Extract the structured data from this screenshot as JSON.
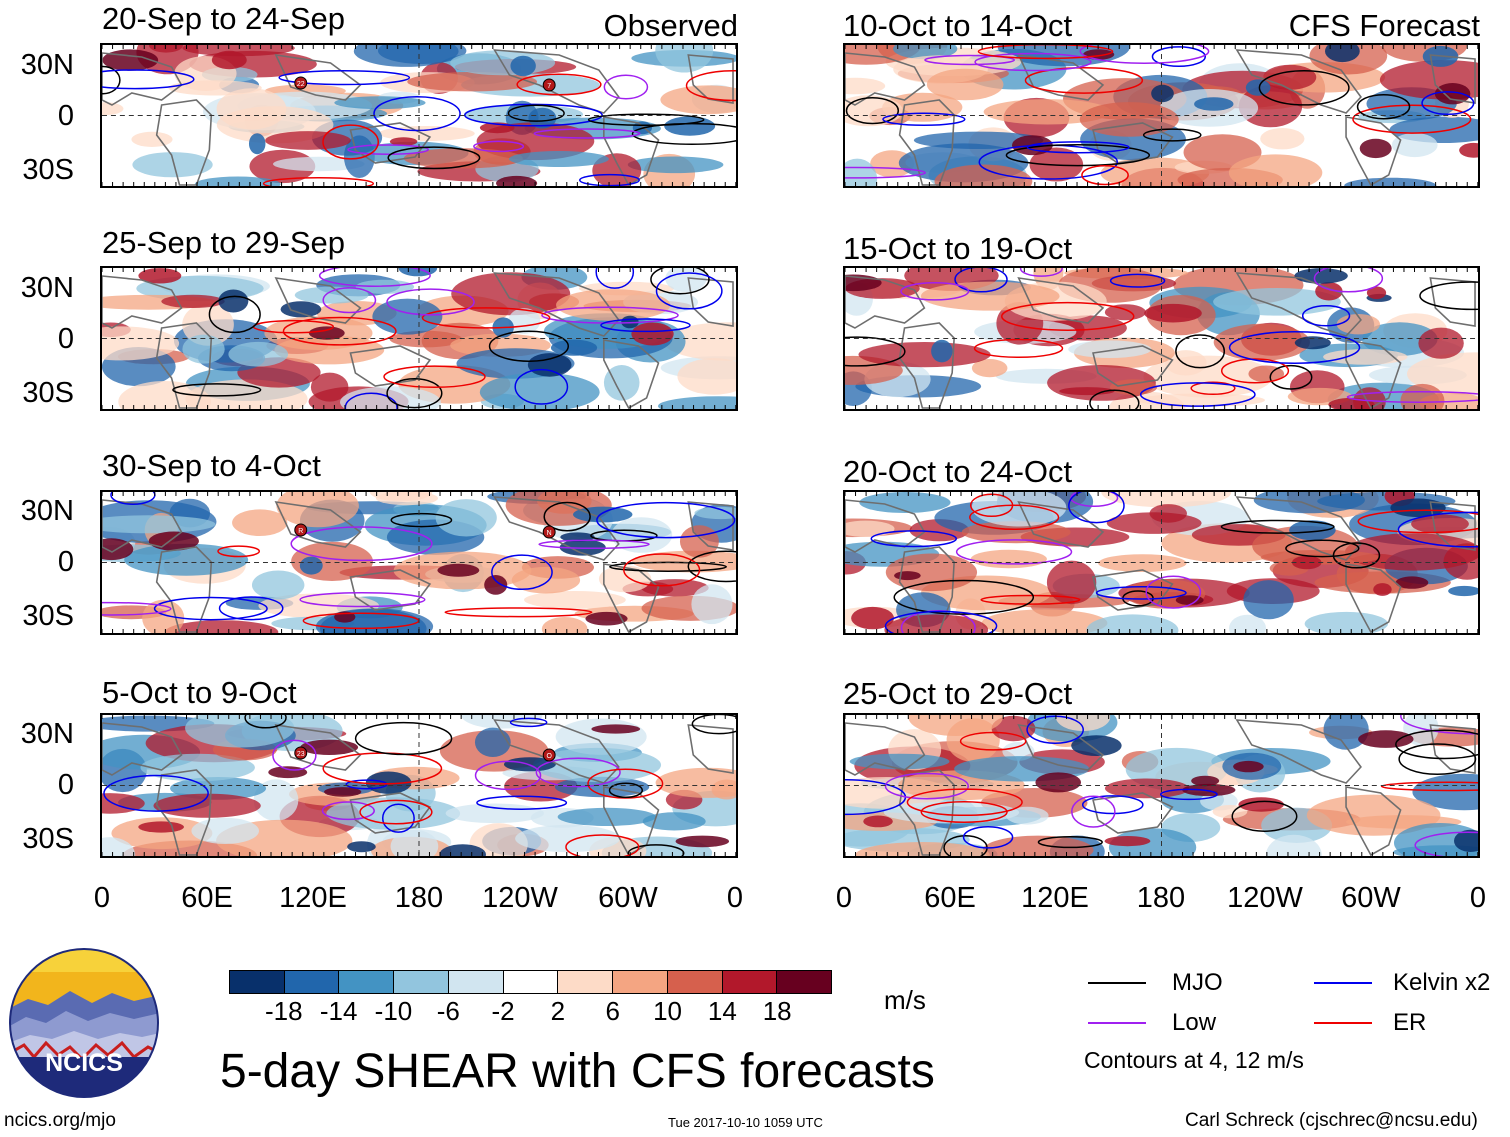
{
  "observed": {
    "label": "Observed",
    "panels": [
      {
        "title": "20-Sep to 24-Sep",
        "storms": [
          "22",
          "7"
        ]
      },
      {
        "title": "25-Sep to 29-Sep",
        "storms": []
      },
      {
        "title": "30-Sep to 4-Oct",
        "storms": [
          "R",
          "N"
        ]
      },
      {
        "title": "5-Oct to 9-Oct",
        "storms": [
          "23",
          "O"
        ]
      }
    ]
  },
  "forecast": {
    "label": "CFS Forecast",
    "panels": [
      {
        "title": "10-Oct to 14-Oct"
      },
      {
        "title": "15-Oct to 19-Oct"
      },
      {
        "title": "20-Oct to 24-Oct"
      },
      {
        "title": "25-Oct to 29-Oct"
      }
    ]
  },
  "lat_labels": [
    "30N",
    "0",
    "30S"
  ],
  "lon_labels": [
    "0",
    "60E",
    "120E",
    "180",
    "120W",
    "60W",
    "0"
  ],
  "colorbar": {
    "ticks": [
      "-18",
      "-14",
      "-10",
      "-6",
      "-2",
      "2",
      "6",
      "10",
      "14",
      "18"
    ],
    "units": "m/s",
    "colors": [
      "#08306b",
      "#2166ac",
      "#4393c3",
      "#92c5de",
      "#d1e5f0",
      "#ffffff",
      "#fddbc7",
      "#f4a582",
      "#d6604d",
      "#b2182b",
      "#67001f"
    ]
  },
  "legend": {
    "items": [
      {
        "name": "MJO",
        "color": "#000000"
      },
      {
        "name": "Kelvin x2",
        "color": "#0000ee"
      },
      {
        "name": "Low",
        "color": "#a020f0"
      },
      {
        "name": "ER",
        "color": "#ee0000"
      }
    ],
    "contour_note": "Contours at 4, 12 m/s"
  },
  "logo": {
    "text": "NCICS"
  },
  "main_title": "5-day SHEAR with CFS forecasts",
  "footer": {
    "left": "ncics.org/mjo",
    "center": "Tue 2017-10-10 1059 UTC",
    "right": "Carl Schreck (cjschrec@ncsu.edu)"
  }
}
